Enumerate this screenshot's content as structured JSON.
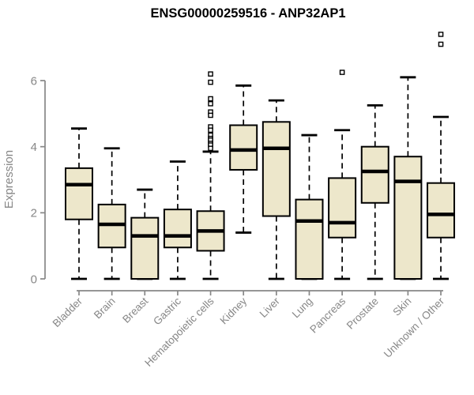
{
  "chart_data": {
    "type": "boxplot",
    "title": "ENSG00000259516 - ANP32AP1",
    "xlabel": "",
    "ylabel": "Expression",
    "ylim": [
      0,
      7.5
    ],
    "yticks": [
      0,
      2,
      4,
      6
    ],
    "grid": false,
    "legend": "none",
    "categories": [
      "Bladder",
      "Brain",
      "Breast",
      "Gastric",
      "Hematopoietic cells",
      "Kidney",
      "Liver",
      "Lung",
      "Pancreas",
      "Prostate",
      "Skin",
      "Unknown / Other"
    ],
    "series": [
      {
        "name": "Bladder",
        "whisker_low": 0,
        "q1": 1.8,
        "median": 2.85,
        "q3": 3.35,
        "whisker_high": 4.55,
        "outliers": []
      },
      {
        "name": "Brain",
        "whisker_low": 0,
        "q1": 0.95,
        "median": 1.65,
        "q3": 2.25,
        "whisker_high": 3.95,
        "outliers": []
      },
      {
        "name": "Breast",
        "whisker_low": 0,
        "q1": 0,
        "median": 1.3,
        "q3": 1.85,
        "whisker_high": 2.7,
        "outliers": []
      },
      {
        "name": "Gastric",
        "whisker_low": 0,
        "q1": 0.95,
        "median": 1.3,
        "q3": 2.1,
        "whisker_high": 3.55,
        "outliers": []
      },
      {
        "name": "Hematopoietic cells",
        "whisker_low": 0,
        "q1": 0.85,
        "median": 1.45,
        "q3": 2.05,
        "whisker_high": 3.85,
        "outliers": [
          6.2,
          5.95,
          5.45,
          5.3,
          5.05,
          4.95,
          4.6,
          4.5,
          4.35,
          4.25,
          4.2,
          4.1,
          4.05,
          3.95
        ]
      },
      {
        "name": "Kidney",
        "whisker_low": 1.4,
        "q1": 3.3,
        "median": 3.9,
        "q3": 4.65,
        "whisker_high": 5.85,
        "outliers": []
      },
      {
        "name": "Liver",
        "whisker_low": 0,
        "q1": 1.9,
        "median": 3.95,
        "q3": 4.75,
        "whisker_high": 5.4,
        "outliers": []
      },
      {
        "name": "Lung",
        "whisker_low": 0,
        "q1": 0,
        "median": 1.75,
        "q3": 2.4,
        "whisker_high": 4.35,
        "outliers": []
      },
      {
        "name": "Pancreas",
        "whisker_low": 0,
        "q1": 1.25,
        "median": 1.7,
        "q3": 3.05,
        "whisker_high": 4.5,
        "outliers": [
          6.25
        ]
      },
      {
        "name": "Prostate",
        "whisker_low": 0,
        "q1": 2.3,
        "median": 3.25,
        "q3": 4.0,
        "whisker_high": 5.25,
        "outliers": []
      },
      {
        "name": "Skin",
        "whisker_low": 0,
        "q1": 0,
        "median": 2.95,
        "q3": 3.7,
        "whisker_high": 6.1,
        "outliers": []
      },
      {
        "name": "Unknown / Other",
        "whisker_low": 0,
        "q1": 1.25,
        "median": 1.95,
        "q3": 2.9,
        "whisker_high": 4.9,
        "outliers": [
          7.4,
          7.1
        ]
      }
    ],
    "colors": {
      "box_fill": "#EDE7CB",
      "box_border": "#000000",
      "median": "#000000",
      "whisker": "#000000",
      "outlier_fill": "#FFFFFF",
      "outlier_border": "#000000",
      "axis": "#878787",
      "tick_label": "#878787",
      "title": "#000000"
    }
  }
}
